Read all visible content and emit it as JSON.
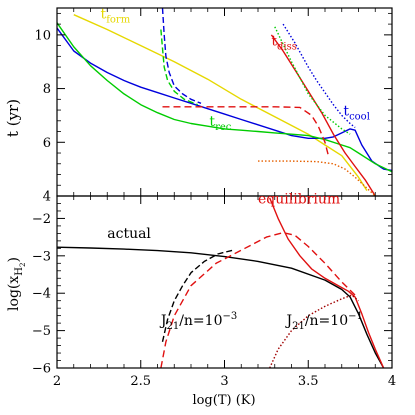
{
  "chart_data": [
    {
      "type": "line",
      "panel": "top",
      "ylabel_main": "t (yr)",
      "xlabel": "",
      "xlim": [
        2,
        4
      ],
      "ylim": [
        4,
        11
      ],
      "xticks": [
        2,
        2.5,
        3,
        3.5,
        4
      ],
      "yticks": [
        4,
        6,
        8,
        10
      ],
      "ytick_labels": [
        "4",
        "6",
        "8",
        "10"
      ],
      "annotations": [
        {
          "id": "tform",
          "main": "t",
          "sub": "form",
          "color": "#e6d800",
          "x": 2.26,
          "y": 10.6
        },
        {
          "id": "tdiss",
          "main": "t",
          "sub": "diss",
          "color": "#e01010",
          "x": 3.28,
          "y": 9.6
        },
        {
          "id": "tcool",
          "main": "t",
          "sub": "cool",
          "color": "#0000dd",
          "x": 3.71,
          "y": 7.0
        },
        {
          "id": "trec",
          "main": "t",
          "sub": "rec",
          "color": "#00cc00",
          "x": 2.91,
          "y": 6.6
        }
      ],
      "series": [
        {
          "id": "form",
          "color": "#e6d800",
          "dash": "",
          "x": [
            2.1,
            2.3,
            2.5,
            2.7,
            2.9,
            3.1,
            3.3,
            3.5,
            3.6,
            3.7,
            3.8,
            3.85
          ],
          "y": [
            10.75,
            10.2,
            9.6,
            9.0,
            8.35,
            7.6,
            6.95,
            6.3,
            5.9,
            5.5,
            4.7,
            4.2
          ]
        },
        {
          "id": "cool",
          "color": "#0000dd",
          "dash": "",
          "x": [
            2,
            2.1,
            2.2,
            2.3,
            2.4,
            2.5,
            2.6,
            2.7,
            2.8,
            2.9,
            3.0,
            3.1,
            3.2,
            3.3,
            3.4,
            3.5,
            3.6,
            3.65,
            3.7,
            3.75,
            3.78,
            3.82,
            3.88,
            3.95,
            4.0
          ],
          "y": [
            10.25,
            9.4,
            8.95,
            8.6,
            8.3,
            8.05,
            7.85,
            7.65,
            7.45,
            7.25,
            7.05,
            6.85,
            6.65,
            6.45,
            6.25,
            6.15,
            6.15,
            6.2,
            6.35,
            6.5,
            6.45,
            5.9,
            5.3,
            5.0,
            4.95
          ]
        },
        {
          "id": "rec",
          "color": "#00cc00",
          "dash": "",
          "x": [
            2,
            2.1,
            2.2,
            2.3,
            2.4,
            2.5,
            2.6,
            2.7,
            2.8,
            2.9,
            3.0,
            3.1,
            3.2,
            3.3,
            3.4,
            3.5,
            3.6,
            3.7,
            3.75,
            3.8,
            3.9,
            4.0
          ],
          "y": [
            10.45,
            9.55,
            8.85,
            8.3,
            7.8,
            7.4,
            7.1,
            6.85,
            6.7,
            6.6,
            6.5,
            6.45,
            6.4,
            6.35,
            6.3,
            6.25,
            6.1,
            5.9,
            5.8,
            5.6,
            5.2,
            4.9
          ]
        },
        {
          "id": "diss_solid",
          "color": "#e01010",
          "dash": "",
          "x": [
            3.28,
            3.35,
            3.42,
            3.5,
            3.58,
            3.65,
            3.72,
            3.78,
            3.84,
            3.9
          ],
          "y": [
            10.0,
            9.4,
            8.7,
            7.9,
            7.1,
            6.3,
            5.6,
            5.1,
            4.6,
            4.0
          ]
        },
        {
          "id": "diss_dot",
          "color": "#0000dd",
          "dash": "1.5,2",
          "x": [
            3.35,
            3.42,
            3.5,
            3.55,
            3.6,
            3.65,
            3.7,
            3.75,
            3.78
          ],
          "y": [
            10.4,
            9.7,
            8.8,
            8.3,
            7.85,
            7.4,
            7.0,
            6.7,
            6.55
          ]
        },
        {
          "id": "green_dot",
          "color": "#00cc00",
          "dash": "1.5,2",
          "x": [
            3.3,
            3.4,
            3.5,
            3.6,
            3.7,
            3.75
          ],
          "y": [
            10.3,
            9.0,
            7.8,
            7.0,
            6.5,
            6.3
          ]
        },
        {
          "id": "green_dash",
          "color": "#00cc00",
          "dash": "6,3",
          "x": [
            2.62,
            2.63,
            2.64,
            2.66,
            2.7,
            2.76,
            2.84
          ],
          "y": [
            10.2,
            9.5,
            8.8,
            8.3,
            7.9,
            7.6,
            7.4
          ]
        },
        {
          "id": "blue_dash",
          "color": "#0000dd",
          "dash": "6,3",
          "x": [
            2.63,
            2.64,
            2.65,
            2.67,
            2.7,
            2.75,
            2.8,
            2.86
          ],
          "y": [
            11.0,
            10.0,
            9.2,
            8.6,
            8.1,
            7.8,
            7.6,
            7.45
          ]
        },
        {
          "id": "red_dash",
          "color": "#e01010",
          "dash": "7,4",
          "x": [
            2.63,
            3.0,
            3.3,
            3.45,
            3.52,
            3.56,
            3.6,
            3.62
          ],
          "y": [
            7.32,
            7.32,
            7.32,
            7.3,
            7.0,
            6.6,
            6.0,
            5.5
          ]
        },
        {
          "id": "orange_dot",
          "color": "#e66000",
          "dash": "1.5,2",
          "x": [
            3.2,
            3.4,
            3.55,
            3.65,
            3.72,
            3.78,
            3.84,
            3.9
          ],
          "y": [
            5.3,
            5.3,
            5.28,
            5.2,
            5.0,
            4.7,
            4.35,
            4.0
          ]
        }
      ]
    },
    {
      "type": "line",
      "panel": "bottom",
      "ylabel_main": "log(x",
      "ylabel_sub": "H",
      "ylabel_subsub": "2",
      "ylabel_close": ")",
      "xlabel": "log(T) (K)",
      "xlim": [
        2,
        4
      ],
      "ylim": [
        -6,
        -1.4
      ],
      "xticks": [
        2,
        2.5,
        3,
        3.5,
        4
      ],
      "xtick_labels": [
        "2",
        "2.5",
        "3",
        "3.5",
        "4"
      ],
      "yticks": [
        -6,
        -5,
        -4,
        -3,
        -2
      ],
      "ytick_labels": [
        "−6",
        "−5",
        "−4",
        "−3",
        "−2"
      ],
      "annotations": [
        {
          "id": "equilibrium",
          "text": "equilibrium",
          "color": "#e01010",
          "x": 3.2,
          "y": -1.6
        },
        {
          "id": "actual",
          "text": "actual",
          "color": "#000000",
          "x": 2.3,
          "y": -2.52
        },
        {
          "id": "j21_low",
          "main": "J",
          "sub": "21",
          "rest": "/n=10",
          "sup": "−3",
          "color": "#000000",
          "x": 2.62,
          "y": -4.85
        },
        {
          "id": "j21_high",
          "main": "J",
          "sub": "21",
          "rest": "/n=10",
          "sup": "−1",
          "color": "#000000",
          "x": 3.37,
          "y": -4.85
        }
      ],
      "series": [
        {
          "id": "actual",
          "color": "#000000",
          "dash": "",
          "x": [
            2,
            2.2,
            2.4,
            2.6,
            2.8,
            3.0,
            3.2,
            3.4,
            3.6,
            3.7,
            3.75,
            3.8,
            3.85,
            3.9,
            3.95
          ],
          "y": [
            -2.77,
            -2.79,
            -2.82,
            -2.86,
            -2.92,
            -3.02,
            -3.15,
            -3.33,
            -3.65,
            -3.9,
            -4.1,
            -4.55,
            -5.1,
            -5.6,
            -6.0
          ]
        },
        {
          "id": "equilibrium",
          "color": "#e01010",
          "dash": "",
          "x": [
            3.27,
            3.32,
            3.38,
            3.45,
            3.52,
            3.6,
            3.68,
            3.74,
            3.78,
            3.82,
            3.86,
            3.9,
            3.95
          ],
          "y": [
            -1.45,
            -2.0,
            -2.55,
            -3.0,
            -3.35,
            -3.6,
            -3.8,
            -3.95,
            -4.1,
            -4.55,
            -5.05,
            -5.5,
            -6.0
          ]
        },
        {
          "id": "black_dash",
          "color": "#000000",
          "dash": "6,3",
          "x": [
            2.63,
            2.66,
            2.7,
            2.75,
            2.8,
            2.88,
            2.96,
            3.05
          ],
          "y": [
            -5.3,
            -4.7,
            -4.2,
            -3.8,
            -3.45,
            -3.15,
            -2.95,
            -2.85
          ]
        },
        {
          "id": "red_dash",
          "color": "#e01010",
          "dash": "7,4",
          "x": [
            2.62,
            2.65,
            2.7,
            2.8,
            2.95,
            3.1,
            3.25,
            3.35,
            3.42,
            3.5,
            3.6,
            3.7,
            3.78
          ],
          "y": [
            -6.0,
            -5.3,
            -4.6,
            -3.8,
            -3.2,
            -2.85,
            -2.5,
            -2.38,
            -2.45,
            -2.75,
            -3.2,
            -3.7,
            -4.05
          ]
        },
        {
          "id": "red_dot",
          "color": "#a00000",
          "dash": "1.5,2",
          "x": [
            3.27,
            3.32,
            3.4,
            3.5,
            3.6,
            3.7,
            3.76,
            3.8
          ],
          "y": [
            -6.0,
            -5.5,
            -5.0,
            -4.6,
            -4.35,
            -4.15,
            -4.05,
            -4.2
          ]
        }
      ]
    }
  ]
}
